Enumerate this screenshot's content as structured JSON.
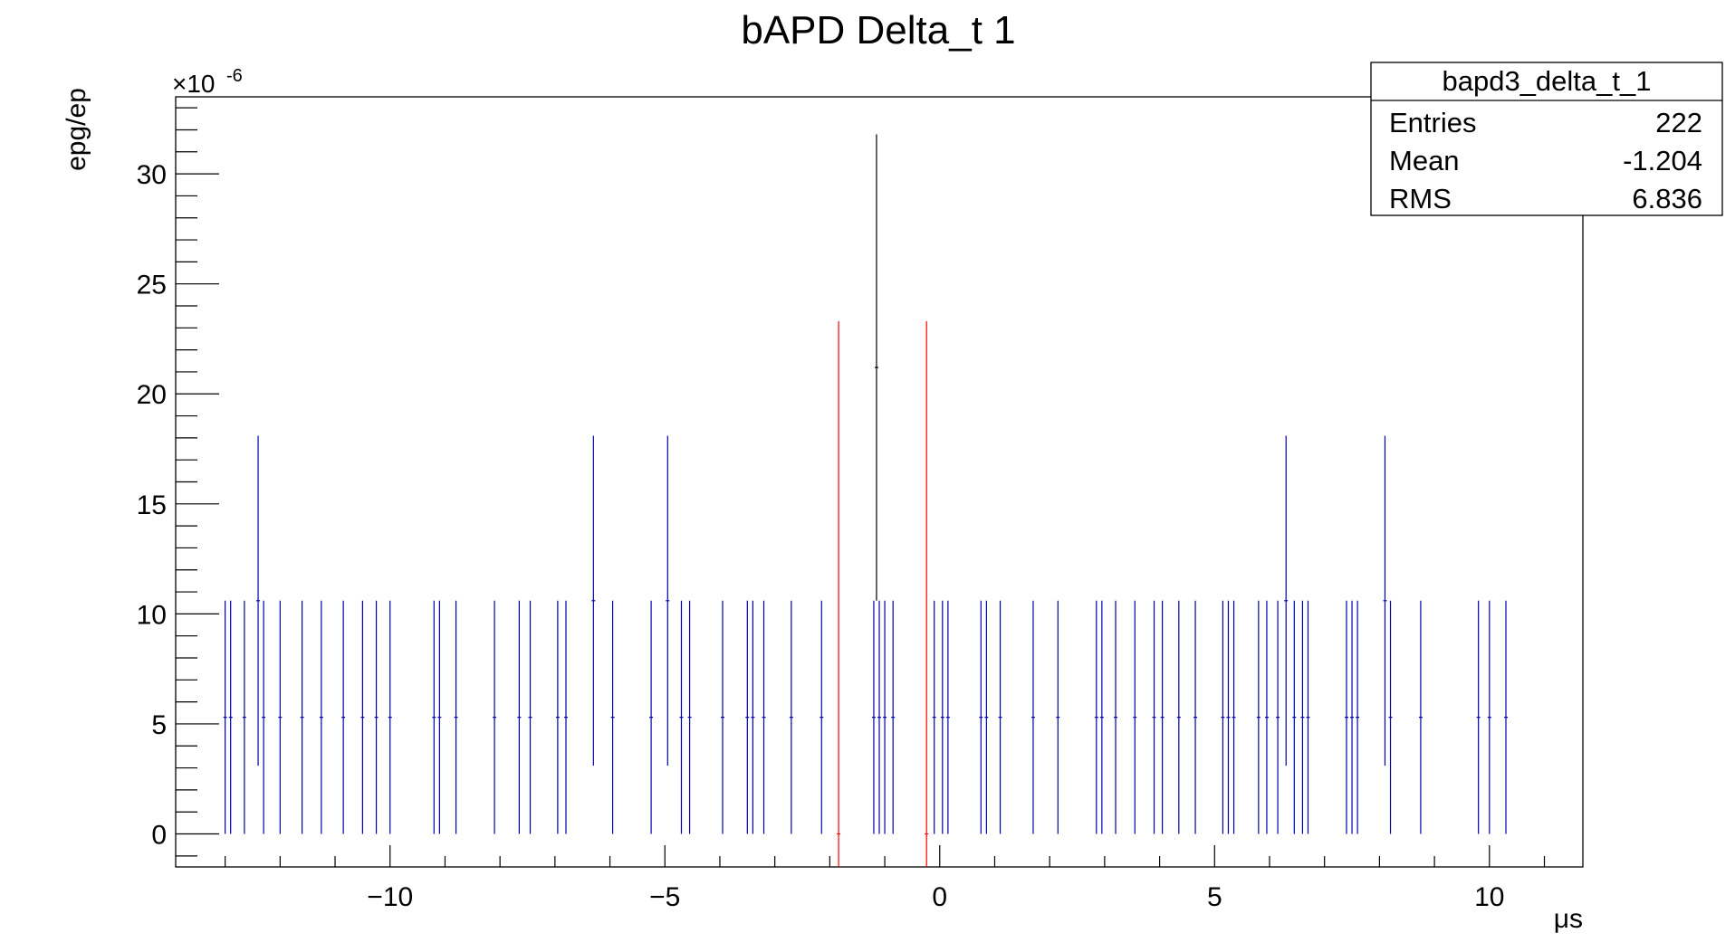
{
  "chart_data": {
    "type": "scatter",
    "title": "bAPD Delta_t 1",
    "xlabel": "μs",
    "ylabel": "epg/ep",
    "y_multiplier": "×10",
    "y_multiplier_exp": "-6",
    "xlim": [
      -13.9,
      11.7
    ],
    "ylim": [
      -1.5,
      33.5
    ],
    "x_ticks": [
      -10,
      -5,
      0,
      5,
      10
    ],
    "x_tick_labels": [
      "−10",
      "−5",
      "0",
      "5",
      "10"
    ],
    "y_ticks": [
      0,
      5,
      10,
      15,
      20,
      25,
      30
    ],
    "y_tick_labels": [
      "0",
      "5",
      "10",
      "15",
      "20",
      "25",
      "30"
    ],
    "grid": false,
    "stats_box": {
      "name": "bapd3_delta_t_1",
      "rows": [
        {
          "label": "Entries",
          "value": "222"
        },
        {
          "label": "Mean",
          "value": "-1.204"
        },
        {
          "label": "RMS",
          "value": "6.836"
        }
      ]
    },
    "series": [
      {
        "color": "#0000aa",
        "points": [
          {
            "x": -13.0,
            "y": 5.3,
            "yerr": 5.3
          },
          {
            "x": -12.9,
            "y": 5.3,
            "yerr": 5.3
          },
          {
            "x": -12.65,
            "y": 5.3,
            "yerr": 5.3
          },
          {
            "x": -12.4,
            "y": 10.6,
            "yerr": 7.5
          },
          {
            "x": -12.3,
            "y": 5.3,
            "yerr": 5.3
          },
          {
            "x": -12.0,
            "y": 5.3,
            "yerr": 5.3
          },
          {
            "x": -11.6,
            "y": 5.3,
            "yerr": 5.3
          },
          {
            "x": -11.25,
            "y": 5.3,
            "yerr": 5.3
          },
          {
            "x": -10.85,
            "y": 5.3,
            "yerr": 5.3
          },
          {
            "x": -10.5,
            "y": 5.3,
            "yerr": 5.3
          },
          {
            "x": -10.25,
            "y": 5.3,
            "yerr": 5.3
          },
          {
            "x": -10.0,
            "y": 5.3,
            "yerr": 5.3
          },
          {
            "x": -9.2,
            "y": 5.3,
            "yerr": 5.3
          },
          {
            "x": -9.1,
            "y": 5.3,
            "yerr": 5.3
          },
          {
            "x": -8.8,
            "y": 5.3,
            "yerr": 5.3
          },
          {
            "x": -8.1,
            "y": 5.3,
            "yerr": 5.3
          },
          {
            "x": -7.65,
            "y": 5.3,
            "yerr": 5.3
          },
          {
            "x": -7.45,
            "y": 5.3,
            "yerr": 5.3
          },
          {
            "x": -6.95,
            "y": 5.3,
            "yerr": 5.3
          },
          {
            "x": -6.8,
            "y": 5.3,
            "yerr": 5.3
          },
          {
            "x": -6.3,
            "y": 10.6,
            "yerr": 7.5
          },
          {
            "x": -5.95,
            "y": 5.3,
            "yerr": 5.3
          },
          {
            "x": -5.25,
            "y": 5.3,
            "yerr": 5.3
          },
          {
            "x": -4.95,
            "y": 10.6,
            "yerr": 7.5
          },
          {
            "x": -4.7,
            "y": 5.3,
            "yerr": 5.3
          },
          {
            "x": -4.55,
            "y": 5.3,
            "yerr": 5.3
          },
          {
            "x": -3.95,
            "y": 5.3,
            "yerr": 5.3
          },
          {
            "x": -3.5,
            "y": 5.3,
            "yerr": 5.3
          },
          {
            "x": -3.4,
            "y": 5.3,
            "yerr": 5.3
          },
          {
            "x": -3.2,
            "y": 5.3,
            "yerr": 5.3
          },
          {
            "x": -2.7,
            "y": 5.3,
            "yerr": 5.3
          },
          {
            "x": -2.15,
            "y": 5.3,
            "yerr": 5.3
          },
          {
            "x": -1.2,
            "y": 5.3,
            "yerr": 5.3
          },
          {
            "x": -1.1,
            "y": 5.3,
            "yerr": 5.3
          },
          {
            "x": -1.0,
            "y": 5.3,
            "yerr": 5.3
          },
          {
            "x": -0.85,
            "y": 5.3,
            "yerr": 5.3
          },
          {
            "x": -0.1,
            "y": 5.3,
            "yerr": 5.3
          },
          {
            "x": 0.05,
            "y": 5.3,
            "yerr": 5.3
          },
          {
            "x": 0.15,
            "y": 5.3,
            "yerr": 5.3
          },
          {
            "x": 0.75,
            "y": 5.3,
            "yerr": 5.3
          },
          {
            "x": 0.85,
            "y": 5.3,
            "yerr": 5.3
          },
          {
            "x": 1.1,
            "y": 5.3,
            "yerr": 5.3
          },
          {
            "x": 1.7,
            "y": 5.3,
            "yerr": 5.3
          },
          {
            "x": 2.15,
            "y": 5.3,
            "yerr": 5.3
          },
          {
            "x": 2.85,
            "y": 5.3,
            "yerr": 5.3
          },
          {
            "x": 2.95,
            "y": 5.3,
            "yerr": 5.3
          },
          {
            "x": 3.2,
            "y": 5.3,
            "yerr": 5.3
          },
          {
            "x": 3.55,
            "y": 5.3,
            "yerr": 5.3
          },
          {
            "x": 3.9,
            "y": 5.3,
            "yerr": 5.3
          },
          {
            "x": 4.05,
            "y": 5.3,
            "yerr": 5.3
          },
          {
            "x": 4.35,
            "y": 5.3,
            "yerr": 5.3
          },
          {
            "x": 4.65,
            "y": 5.3,
            "yerr": 5.3
          },
          {
            "x": 5.15,
            "y": 5.3,
            "yerr": 5.3
          },
          {
            "x": 5.25,
            "y": 5.3,
            "yerr": 5.3
          },
          {
            "x": 5.35,
            "y": 5.3,
            "yerr": 5.3
          },
          {
            "x": 5.8,
            "y": 5.3,
            "yerr": 5.3
          },
          {
            "x": 5.95,
            "y": 5.3,
            "yerr": 5.3
          },
          {
            "x": 6.15,
            "y": 5.3,
            "yerr": 5.3
          },
          {
            "x": 6.3,
            "y": 10.6,
            "yerr": 7.5
          },
          {
            "x": 6.45,
            "y": 5.3,
            "yerr": 5.3
          },
          {
            "x": 6.6,
            "y": 5.3,
            "yerr": 5.3
          },
          {
            "x": 6.7,
            "y": 5.3,
            "yerr": 5.3
          },
          {
            "x": 7.4,
            "y": 5.3,
            "yerr": 5.3
          },
          {
            "x": 7.5,
            "y": 5.3,
            "yerr": 5.3
          },
          {
            "x": 7.6,
            "y": 5.3,
            "yerr": 5.3
          },
          {
            "x": 8.1,
            "y": 10.6,
            "yerr": 7.5
          },
          {
            "x": 8.2,
            "y": 5.3,
            "yerr": 5.3
          },
          {
            "x": 8.75,
            "y": 5.3,
            "yerr": 5.3
          },
          {
            "x": 9.8,
            "y": 5.3,
            "yerr": 5.3
          },
          {
            "x": 10.0,
            "y": 5.3,
            "yerr": 5.3
          },
          {
            "x": 10.3,
            "y": 5.3,
            "yerr": 5.3
          }
        ]
      },
      {
        "color": "#ff0000",
        "points": [
          {
            "x": -1.84,
            "y": 0,
            "yerr": 23.3
          },
          {
            "x": -0.24,
            "y": 0,
            "yerr": 23.3
          }
        ]
      },
      {
        "color": "#000000",
        "points": [
          {
            "x": -1.15,
            "y": 21.2,
            "yerr": 10.6
          }
        ]
      }
    ]
  }
}
